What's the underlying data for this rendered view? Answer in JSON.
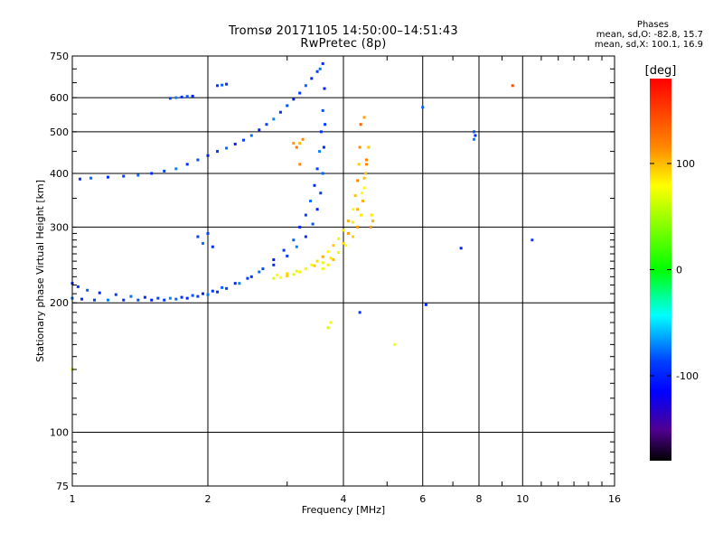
{
  "title_line1": "Tromsø 20171105 14:50:00–14:51:43",
  "title_line2": "RwPretec (8p)",
  "phases": {
    "title": "Phases",
    "mean_o": "mean, sd,O: -82.8, 15.7",
    "mean_x": "mean, sd,X: 100.1, 16.9"
  },
  "chart_data": {
    "type": "scatter",
    "title": "Tromsø 20171105 14:50:00–14:51:43",
    "subtitle": "RwPretec (8p)",
    "xlabel": "Frequency [MHz]",
    "ylabel": "Stationary phase Virtual Height [km]",
    "x_scale": "log",
    "y_scale": "log",
    "xlim": [
      1,
      16
    ],
    "ylim": [
      75,
      750
    ],
    "x_ticks": [
      1,
      2,
      4,
      6,
      8,
      10,
      16
    ],
    "x_tick_labels": [
      "1",
      "2",
      "4",
      "6",
      "8",
      "10",
      "16"
    ],
    "y_ticks": [
      75,
      100,
      200,
      300,
      400,
      500,
      600,
      750
    ],
    "y_tick_labels": [
      "75",
      "100",
      "200",
      "300",
      "400",
      "500",
      "600",
      "750"
    ],
    "grid": true,
    "colorbar": {
      "label": "[deg]",
      "range": [
        -180,
        180
      ],
      "ticks": [
        100,
        0,
        -100
      ],
      "tick_labels": [
        "100",
        "0",
        "-100"
      ],
      "colors": [
        "#ff0000",
        "#ff8000",
        "#ffff00",
        "#00ff00",
        "#00ffff",
        "#0000ff",
        "#6000a0",
        "#000000"
      ]
    },
    "series": [
      {
        "name": "O",
        "mean_phase": -82.8,
        "x": [
          1.0,
          1.03,
          1.08,
          1.15,
          1.25,
          1.35,
          1.45,
          1.55,
          1.65,
          1.75,
          1.85,
          1.95,
          2.05,
          2.15,
          2.3,
          2.45,
          2.6,
          2.8,
          3.0,
          3.15,
          3.3,
          3.42,
          3.5,
          3.56,
          3.6,
          3.62,
          3.64,
          1.0,
          1.05,
          1.12,
          1.2,
          1.3,
          1.4,
          1.5,
          1.6,
          1.7,
          1.8,
          1.9,
          2.0,
          2.1,
          2.2,
          2.35,
          2.5,
          2.65,
          2.8,
          2.95,
          3.1,
          3.2,
          3.3,
          3.38,
          3.45,
          3.5,
          3.54,
          3.57,
          3.6,
          3.63,
          1.04,
          1.1,
          1.2,
          1.3,
          1.4,
          1.5,
          1.6,
          1.7,
          1.8,
          1.9,
          2.0,
          2.1,
          2.2,
          2.3,
          2.4,
          2.5,
          2.6,
          2.7,
          2.8,
          2.9,
          3.0,
          3.1,
          3.2,
          3.3,
          3.4,
          3.5,
          3.55,
          3.6,
          1.65,
          1.7,
          1.75,
          1.8,
          1.85,
          2.1,
          2.15,
          2.2,
          1.9,
          1.95,
          2.05,
          2.0,
          7.8,
          7.85,
          7.8,
          6.1,
          4.35,
          6.0,
          7.3,
          10.5
        ],
        "y": [
          222,
          218,
          214,
          211,
          209,
          207,
          206,
          205,
          205,
          206,
          208,
          210,
          213,
          217,
          222,
          228,
          236,
          245,
          257,
          270,
          285,
          305,
          330,
          360,
          400,
          460,
          520,
          205,
          204,
          203,
          203,
          203,
          203,
          203,
          203,
          204,
          205,
          207,
          209,
          212,
          216,
          222,
          230,
          240,
          252,
          265,
          280,
          300,
          320,
          345,
          375,
          410,
          450,
          500,
          560,
          630,
          388,
          390,
          392,
          394,
          396,
          400,
          405,
          410,
          420,
          430,
          440,
          450,
          458,
          468,
          478,
          490,
          505,
          520,
          535,
          555,
          575,
          595,
          615,
          640,
          665,
          690,
          700,
          720,
          598,
          600,
          602,
          604,
          605,
          640,
          642,
          645,
          285,
          275,
          270,
          290,
          480,
          490,
          500,
          198,
          190,
          570,
          268,
          280
        ]
      },
      {
        "name": "X",
        "mean_phase": 100.1,
        "x": [
          2.8,
          2.9,
          3.0,
          3.1,
          3.2,
          3.3,
          3.4,
          3.5,
          3.6,
          3.7,
          3.8,
          3.9,
          4.0,
          4.1,
          4.2,
          4.25,
          4.3,
          4.33,
          4.35,
          4.37,
          2.85,
          3.0,
          3.15,
          3.3,
          3.45,
          3.6,
          3.75,
          3.9,
          4.05,
          4.2,
          4.3,
          4.38,
          4.42,
          4.45,
          4.48,
          4.5,
          3.6,
          3.7,
          3.8,
          3.9,
          4.0,
          4.1,
          4.2,
          4.3,
          4.4,
          4.45,
          4.5,
          4.55,
          3.1,
          3.15,
          3.2,
          3.25,
          4.6,
          4.62,
          4.65,
          3.7,
          3.75,
          3.2,
          4.45,
          5.2,
          9.5,
          1.0
        ],
        "y": [
          228,
          229,
          231,
          233,
          236,
          240,
          245,
          250,
          256,
          263,
          272,
          282,
          295,
          310,
          330,
          355,
          385,
          420,
          460,
          520,
          232,
          234,
          237,
          240,
          244,
          248,
          254,
          262,
          272,
          285,
          300,
          320,
          345,
          370,
          400,
          430,
          240,
          245,
          252,
          262,
          275,
          290,
          308,
          330,
          360,
          390,
          420,
          460,
          470,
          460,
          470,
          480,
          300,
          320,
          310,
          175,
          180,
          420,
          540,
          160,
          640,
          140
        ]
      }
    ]
  }
}
